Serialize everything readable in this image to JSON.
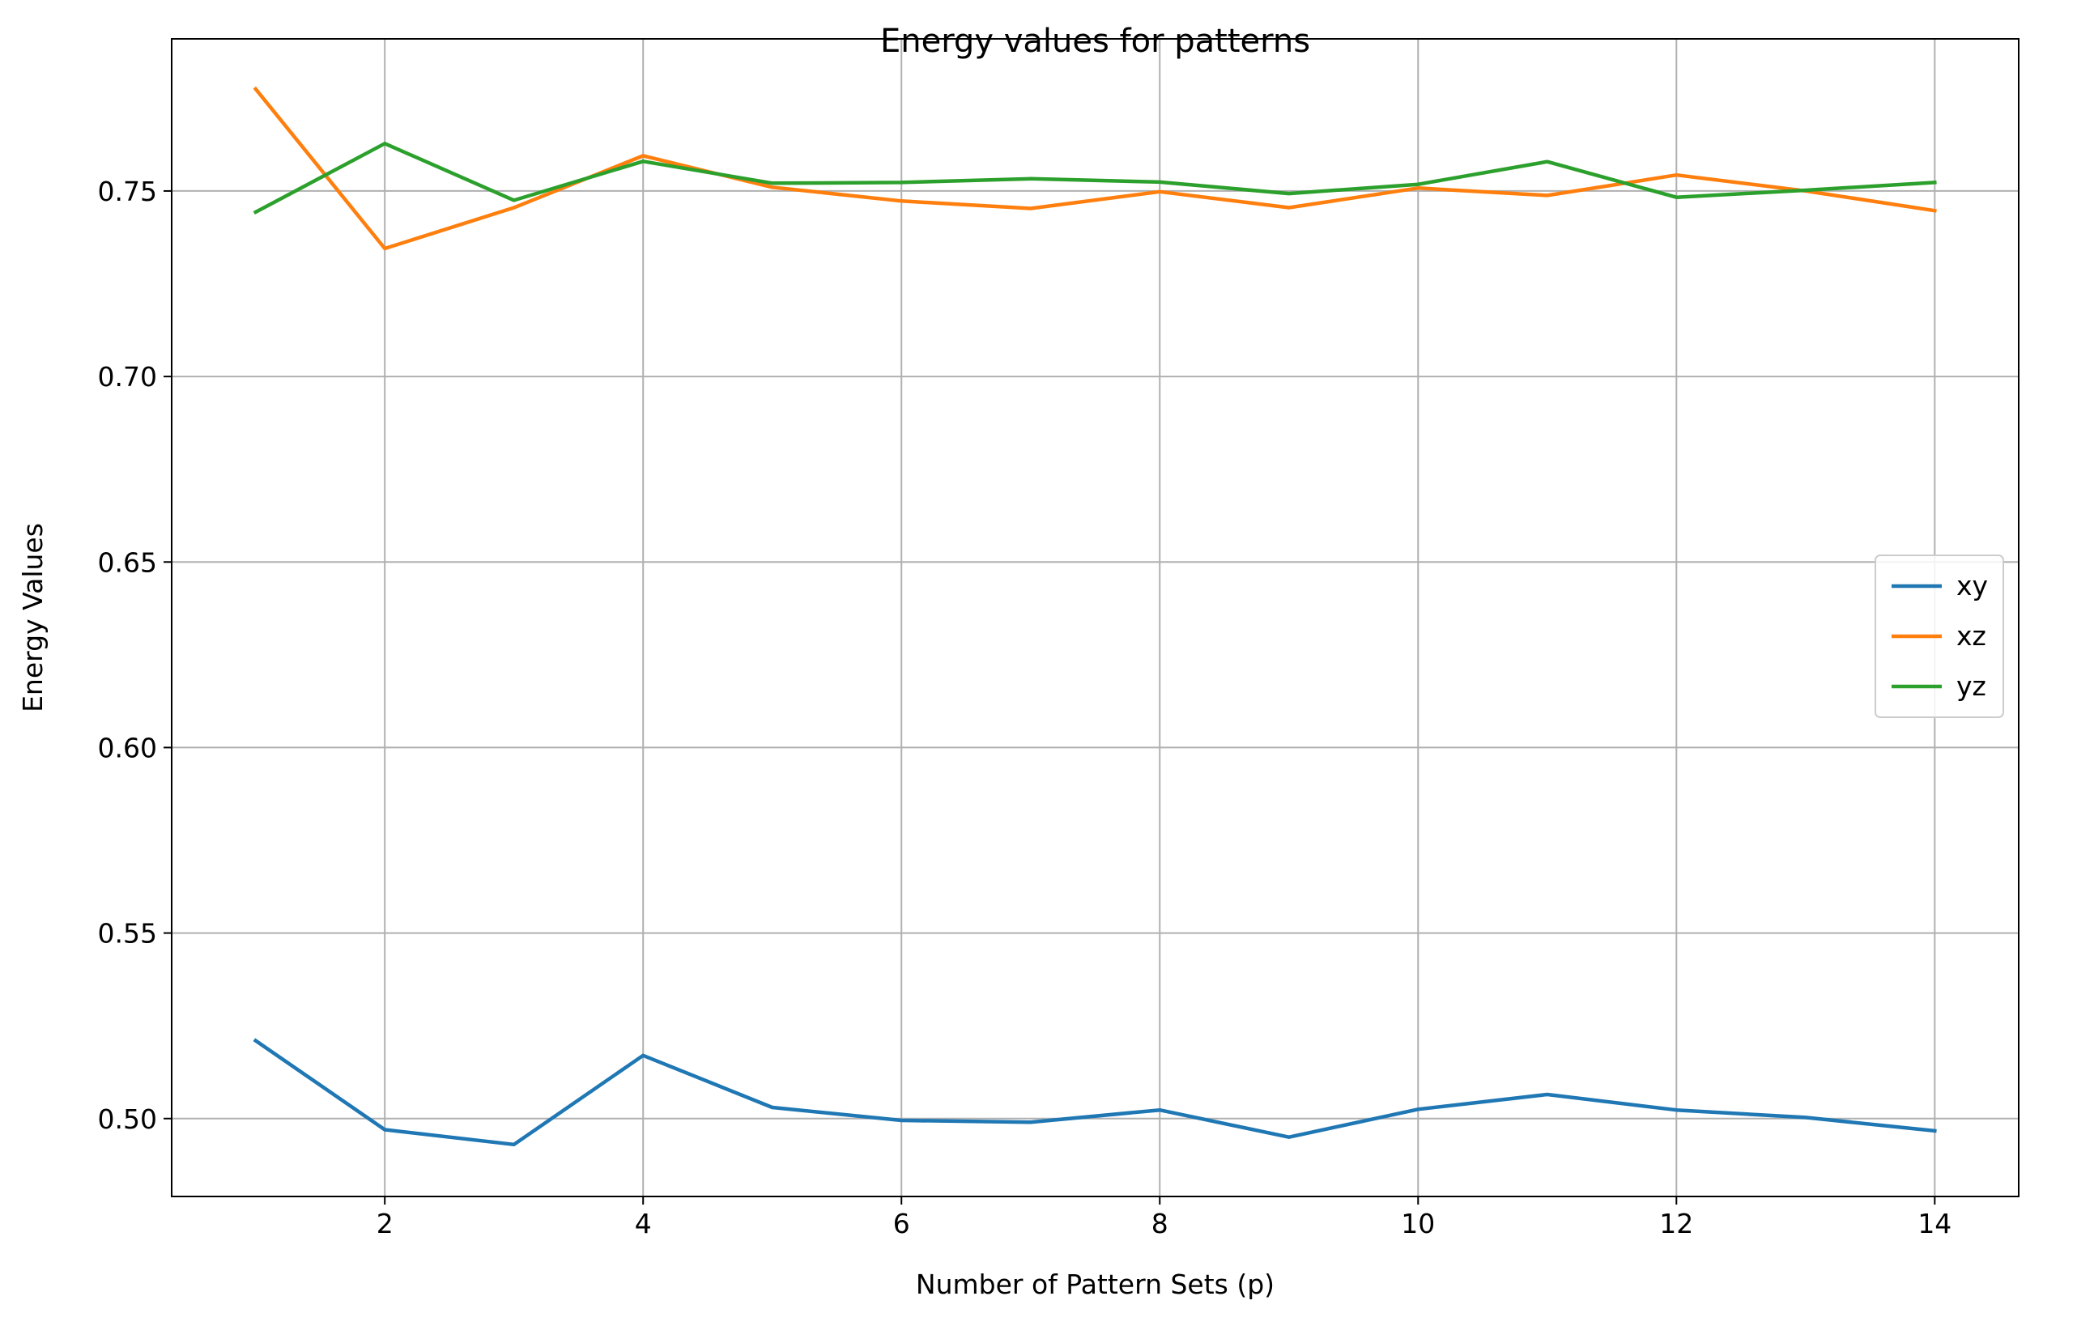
{
  "chart_data": {
    "type": "line",
    "title": "Energy values for patterns",
    "xlabel": "Number of Pattern Sets (p)",
    "ylabel": "Energy Values",
    "x": [
      1,
      2,
      3,
      4,
      5,
      6,
      7,
      8,
      9,
      10,
      11,
      12,
      13,
      14
    ],
    "xlim": [
      0.35,
      14.65
    ],
    "ylim": [
      0.479,
      0.791
    ],
    "xticks": [
      2,
      4,
      6,
      8,
      10,
      12,
      14
    ],
    "yticks": [
      0.5,
      0.55,
      0.6,
      0.65,
      0.7,
      0.75
    ],
    "xtick_labels": [
      "2",
      "4",
      "6",
      "8",
      "10",
      "12",
      "14"
    ],
    "ytick_labels": [
      "0.50",
      "0.55",
      "0.60",
      "0.65",
      "0.70",
      "0.75"
    ],
    "grid": true,
    "legend_position": "center-right",
    "series": [
      {
        "name": "xy",
        "color": "#1f77b4",
        "values": [
          0.521,
          0.497,
          0.493,
          0.517,
          0.503,
          0.4995,
          0.499,
          0.5023,
          0.495,
          0.5025,
          0.5065,
          0.5023,
          0.5003,
          0.4967
        ]
      },
      {
        "name": "xz",
        "color": "#ff7f0e",
        "values": [
          0.7775,
          0.7345,
          0.7455,
          0.7595,
          0.751,
          0.7473,
          0.7453,
          0.7498,
          0.7455,
          0.7508,
          0.7488,
          0.7543,
          0.75,
          0.7447
        ]
      },
      {
        "name": "yz",
        "color": "#2ca02c",
        "values": [
          0.7443,
          0.7628,
          0.7475,
          0.758,
          0.7521,
          0.7523,
          0.7533,
          0.7524,
          0.7493,
          0.7518,
          0.7579,
          0.7483,
          0.7502,
          0.7523
        ]
      }
    ]
  }
}
